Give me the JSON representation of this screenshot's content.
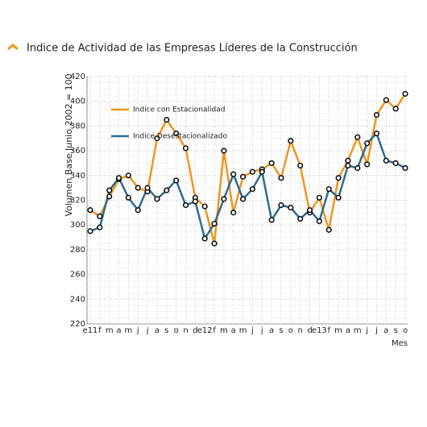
{
  "chart_data": {
    "type": "line",
    "title": "Indice de Actividad de las Empresas Líderes de la Construcción",
    "y_label": "Volumen Base Junio 2002 = 100",
    "x_label": "Mes",
    "categories": [
      "e11",
      "f",
      "m",
      "a",
      "m",
      "j",
      "j",
      "a",
      "s",
      "o",
      "n",
      "d",
      "e12",
      "f",
      "m",
      "a",
      "m",
      "j",
      "j",
      "a",
      "s",
      "o",
      "n",
      "d",
      "e13",
      "f",
      "m",
      "a",
      "m",
      "j",
      "j",
      "a",
      "s",
      "o"
    ],
    "series": [
      {
        "name": "Indice con Estacionalidad",
        "color": "#f0961e",
        "values": [
          312,
          307,
          323,
          337,
          340,
          330,
          327,
          370,
          385,
          374,
          362,
          322,
          315,
          285,
          360,
          310,
          339,
          343,
          345,
          350,
          338,
          368,
          348,
          310,
          322,
          296,
          338,
          352,
          371,
          349,
          389,
          401,
          394,
          406
        ]
      },
      {
        "name": "Indice Desestacionalizado",
        "color": "#2f6b8f",
        "values": [
          295,
          298,
          328,
          338,
          322,
          312,
          330,
          321,
          328,
          336,
          316,
          319,
          289,
          301,
          321,
          341,
          321,
          329,
          343,
          304,
          316,
          314,
          305,
          312,
          303,
          329,
          322,
          348,
          346,
          366,
          374,
          352,
          350,
          346
        ]
      }
    ],
    "ylim": [
      220,
      420
    ],
    "yticks": [
      220,
      240,
      260,
      280,
      300,
      320,
      340,
      360,
      380,
      400,
      420
    ],
    "grid": true
  }
}
